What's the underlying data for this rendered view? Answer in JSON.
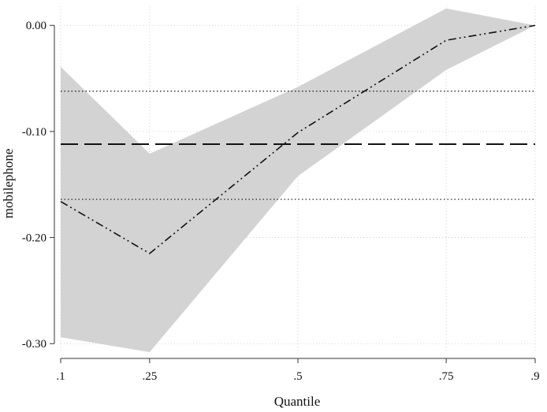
{
  "chart_data": {
    "type": "line",
    "title": "",
    "xlabel": "Quantile",
    "ylabel": "mobilephone",
    "x": [
      0.1,
      0.25,
      0.5,
      0.75,
      0.9
    ],
    "x_tick_labels": [
      ".1",
      ".25",
      ".5",
      ".75",
      ".9"
    ],
    "y_ticks": [
      0.0,
      -0.1,
      -0.2,
      -0.3
    ],
    "y_tick_labels": [
      "0.00",
      "-0.10",
      "-0.20",
      "-0.30"
    ],
    "ylim": [
      -0.308,
      0.018
    ],
    "grid": true,
    "series": [
      {
        "style": "dash-dot-dot",
        "values": [
          -0.166,
          -0.215,
          -0.101,
          -0.014,
          0.0
        ]
      }
    ],
    "confidence_band": {
      "lower": [
        -0.294,
        -0.308,
        -0.142,
        -0.042,
        0.0
      ],
      "upper": [
        -0.039,
        -0.121,
        -0.058,
        0.016,
        0.0
      ],
      "color": "#d3d3d3"
    },
    "reference_lines": [
      {
        "style": "long-dash",
        "value": -0.112
      },
      {
        "style": "dotted",
        "value": -0.062
      },
      {
        "style": "dotted",
        "value": -0.164
      }
    ],
    "colors": {
      "line": "#111111",
      "band": "#d3d3d3",
      "grid": "#c8c8c8",
      "axis": "#333333"
    }
  }
}
